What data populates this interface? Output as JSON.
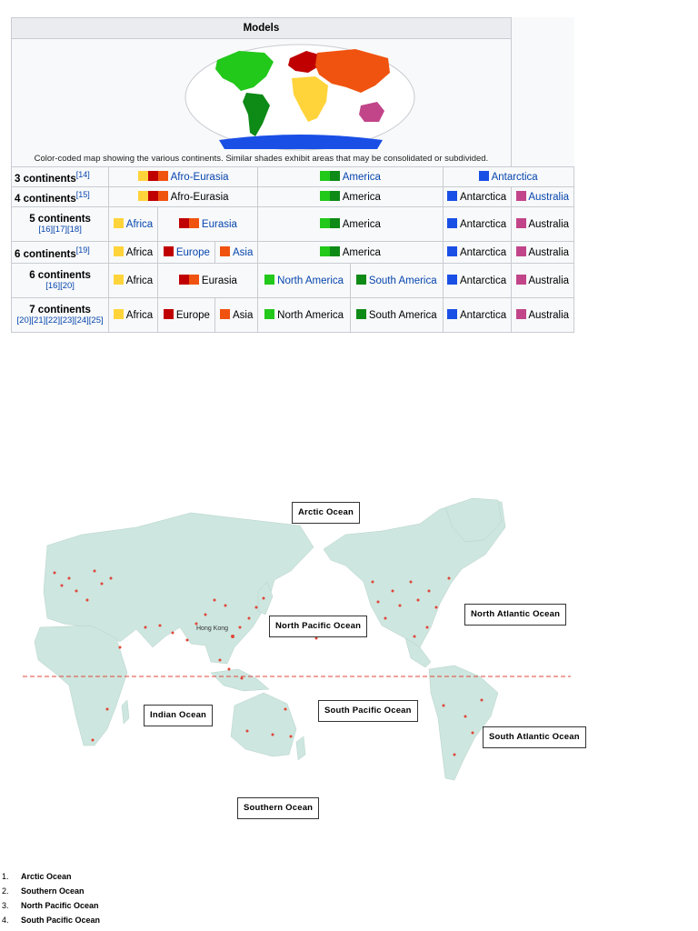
{
  "models_table": {
    "caption": "Models",
    "map_caption": "Color-coded map showing the various continents. Similar shades exhibit areas that may be consolidated or subdivided.",
    "colors": {
      "africa": "#ffd43b",
      "europe": "#c00000",
      "asia": "#f0530f",
      "north_america": "#22c81a",
      "south_america": "#0e8a16",
      "antarctica": "#1a4fe6",
      "australia": "#c2458a"
    },
    "rows": [
      {
        "label": "3 continents",
        "ref": "[14]",
        "cells": [
          "Afro-Eurasia",
          "America",
          "Antarctica"
        ]
      },
      {
        "label": "4 continents",
        "ref": "[15]",
        "cells": [
          "Afro-Eurasia",
          "America",
          "Antarctica",
          "Australia"
        ]
      },
      {
        "label": "5 continents",
        "refs": "[16][17][18]",
        "cells": [
          "Africa",
          "Eurasia",
          "America",
          "Antarctica",
          "Australia"
        ]
      },
      {
        "label": "6 continents",
        "ref": "[19]",
        "cells": [
          "Africa",
          "Europe",
          "Asia",
          "America",
          "Antarctica",
          "Australia"
        ]
      },
      {
        "label": "6 continents",
        "refs": "[16][20]",
        "cells": [
          "Africa",
          "Eurasia",
          "North America",
          "South America",
          "Antarctica",
          "Australia"
        ]
      },
      {
        "label": "7 continents",
        "refs": "[20][21][22][23][24][25]",
        "cells": [
          "Africa",
          "Europe",
          "Asia",
          "North America",
          "South America",
          "Antarctica",
          "Australia"
        ]
      }
    ]
  },
  "world_map": {
    "land_color": "#cde6df",
    "dot_color": "#e0463a",
    "city_label": "Hong Kong",
    "oceans": {
      "arctic": "Arctic Ocean",
      "north_pacific": "North Pacific Ocean",
      "north_atlantic": "North Atlantic Ocean",
      "indian": "Indian Ocean",
      "south_pacific": "South Pacific Ocean",
      "south_atlantic": "South Atlantic Ocean",
      "southern": "Southern Ocean"
    }
  },
  "ocean_list": [
    {
      "num": "1.",
      "text": "Arctic Ocean"
    },
    {
      "num": "2.",
      "text": "Southern Ocean"
    },
    {
      "num": "3.",
      "text": "North Pacific Ocean"
    },
    {
      "num": "4.",
      "text": "South Pacific Ocean"
    }
  ]
}
